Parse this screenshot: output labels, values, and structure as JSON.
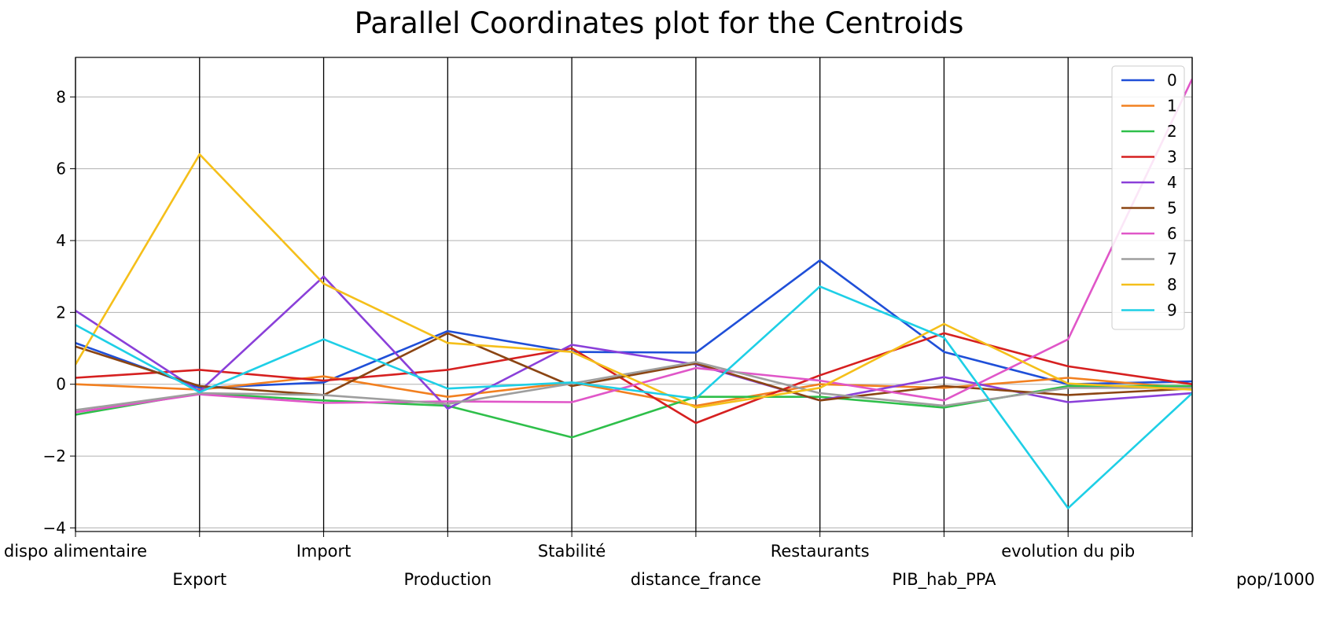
{
  "chart_data": {
    "type": "parallel-coordinates",
    "title": "Parallel Coordinates plot for the Centroids",
    "axes": [
      "dispo alimentaire",
      "Export",
      "Import",
      "Production",
      "Stabilité",
      "distance_france",
      "Restaurants",
      "PIB_hab_PPA",
      "evolution du pib",
      "pop/1000"
    ],
    "ylim": [
      -4.1,
      9.1
    ],
    "yticks": [
      -4,
      -2,
      0,
      2,
      4,
      6,
      8
    ],
    "ytick_labels": [
      "−4",
      "−2",
      "0",
      "2",
      "4",
      "6",
      "8"
    ],
    "grid": true,
    "legend_position": "upper-right",
    "series": [
      {
        "name": "0",
        "color": "#1f4fd8",
        "values": [
          1.15,
          -0.1,
          0.05,
          1.48,
          0.9,
          0.88,
          3.45,
          0.9,
          0.0,
          0.08
        ]
      },
      {
        "name": "1",
        "color": "#f28020",
        "values": [
          0.0,
          -0.15,
          0.22,
          -0.35,
          0.05,
          -0.6,
          0.0,
          -0.1,
          0.18,
          -0.12
        ]
      },
      {
        "name": "2",
        "color": "#2ebf4a",
        "values": [
          -0.85,
          -0.25,
          -0.45,
          -0.6,
          -1.48,
          -0.35,
          -0.35,
          -0.65,
          -0.05,
          -0.05
        ]
      },
      {
        "name": "3",
        "color": "#d62020",
        "values": [
          0.18,
          0.4,
          0.1,
          0.4,
          1.0,
          -1.08,
          0.25,
          1.42,
          0.5,
          0.0
        ]
      },
      {
        "name": "4",
        "color": "#8a3fd9",
        "values": [
          2.05,
          -0.2,
          3.0,
          -0.68,
          1.1,
          0.55,
          -0.45,
          0.2,
          -0.5,
          -0.25
        ]
      },
      {
        "name": "5",
        "color": "#8b4513",
        "values": [
          1.05,
          -0.05,
          -0.3,
          1.42,
          -0.05,
          0.58,
          -0.45,
          -0.05,
          -0.3,
          -0.12
        ]
      },
      {
        "name": "6",
        "color": "#e056c8",
        "values": [
          -0.78,
          -0.28,
          -0.52,
          -0.48,
          -0.5,
          0.45,
          0.1,
          -0.45,
          1.25,
          8.5
        ]
      },
      {
        "name": "7",
        "color": "#9e9e9e",
        "values": [
          -0.72,
          -0.25,
          -0.3,
          -0.55,
          0.02,
          0.62,
          -0.25,
          -0.6,
          -0.1,
          -0.1
        ]
      },
      {
        "name": "8",
        "color": "#f5bf1a",
        "values": [
          0.55,
          6.4,
          2.8,
          1.15,
          0.9,
          -0.65,
          -0.1,
          1.68,
          0.02,
          -0.15
        ]
      },
      {
        "name": "9",
        "color": "#1ecfe6",
        "values": [
          1.65,
          -0.22,
          1.25,
          -0.12,
          0.05,
          -0.4,
          2.72,
          1.3,
          -3.45,
          -0.25
        ]
      }
    ]
  }
}
